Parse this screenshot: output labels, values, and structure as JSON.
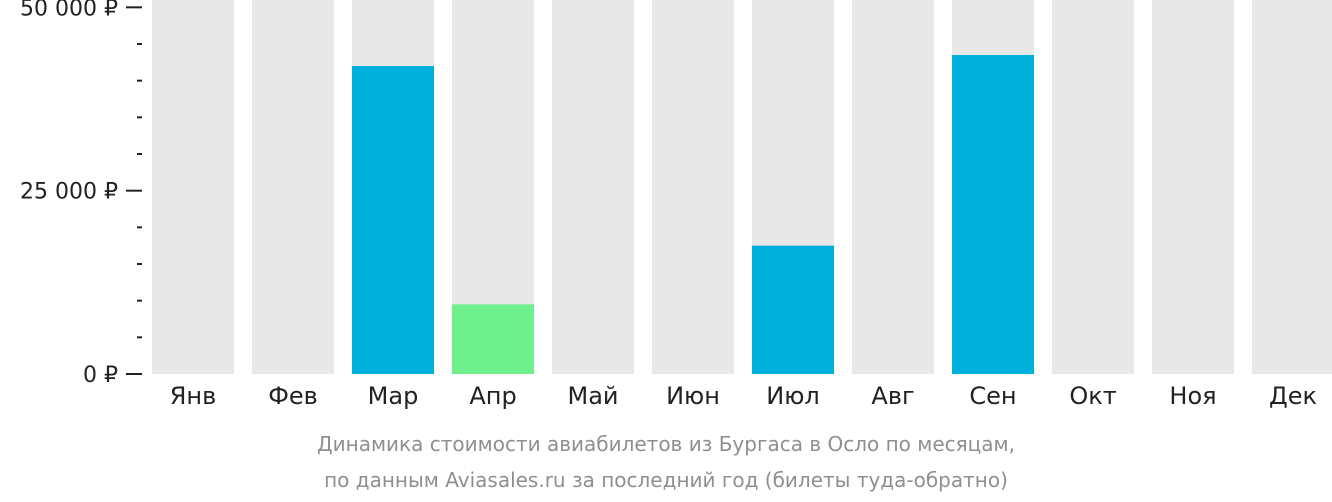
{
  "chart_data": {
    "type": "bar",
    "categories": [
      "Янв",
      "Фев",
      "Мар",
      "Апр",
      "Май",
      "Июн",
      "Июл",
      "Авг",
      "Сен",
      "Окт",
      "Ноя",
      "Дек"
    ],
    "series": [
      {
        "values": [
          null,
          null,
          42000,
          9500,
          null,
          null,
          17500,
          null,
          43500,
          null,
          null,
          null
        ],
        "highlight": [
          false,
          false,
          false,
          true,
          false,
          false,
          false,
          false,
          false,
          false,
          false,
          false
        ]
      }
    ],
    "ylim": [
      0,
      51000
    ],
    "y_tick_labels": [
      {
        "value": 0,
        "label": "0 ₽"
      },
      {
        "value": 25000,
        "label": "25 000 ₽"
      },
      {
        "value": 50000,
        "label": "50 000 ₽"
      }
    ],
    "y_minor_step": 5000,
    "colors": {
      "bar": "#00b0dc",
      "highlight": "#6ef08c",
      "background_bar": "#e8e8e8",
      "axis": "#222222"
    },
    "caption": [
      "Динамика стоимости авиабилетов из Бургаса в Осло по месяцам,",
      "по данным Aviasales.ru за последний год (билеты туда-обратно)"
    ],
    "grid": false,
    "legend": "none"
  }
}
